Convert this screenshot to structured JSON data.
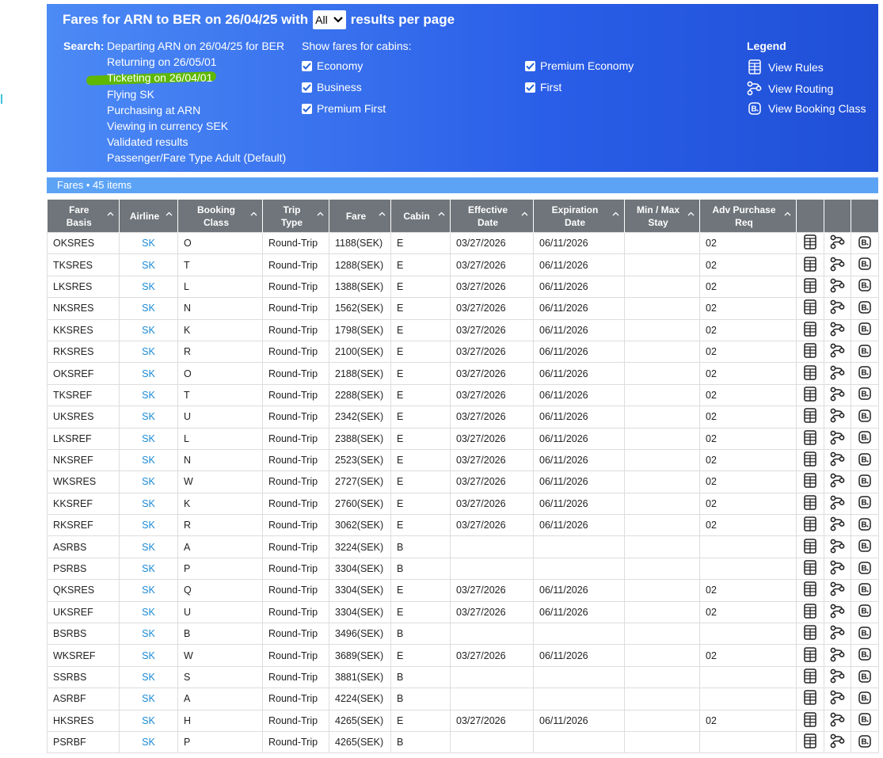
{
  "header": {
    "title_prefix": "Fares for ARN to BER on 26/04/25 with",
    "per_page": "All",
    "title_suffix": "results per page",
    "search_label": "Search:",
    "search_lines": [
      "Departing ARN on 26/04/25 for BER",
      "Returning on 26/05/01",
      "Ticketing on 26/04/01",
      "Flying SK",
      "Purchasing at ARN",
      "Viewing in currency SEK",
      "Validated results",
      "Passenger/Fare Type Adult (Default)"
    ],
    "cabins_label": "Show fares for cabins:",
    "cabins": [
      "Economy",
      "Business",
      "Premium First",
      "Premium Economy",
      "First"
    ],
    "legend_title": "Legend",
    "legend_items": [
      "View Rules",
      "View Routing",
      "View Booking Class"
    ]
  },
  "fares_bar": "Fares • 45 items",
  "table": {
    "columns": [
      [
        "Fare",
        "Basis"
      ],
      [
        "Airline"
      ],
      [
        "Booking",
        "Class"
      ],
      [
        "Trip",
        "Type"
      ],
      [
        "Fare"
      ],
      [
        "Cabin"
      ],
      [
        "Effective",
        "Date"
      ],
      [
        "Expiration",
        "Date"
      ],
      [
        "Min / Max",
        "Stay"
      ],
      [
        "Adv Purchase",
        "Req"
      ]
    ],
    "rows": [
      [
        "OKSRES",
        "SK",
        "O",
        "Round-Trip",
        "1188(SEK)",
        "E",
        "03/27/2026",
        "06/11/2026",
        null,
        "02"
      ],
      [
        "TKSRES",
        "SK",
        "T",
        "Round-Trip",
        "1288(SEK)",
        "E",
        "03/27/2026",
        "06/11/2026",
        null,
        "02"
      ],
      [
        "LKSRES",
        "SK",
        "L",
        "Round-Trip",
        "1388(SEK)",
        "E",
        "03/27/2026",
        "06/11/2026",
        null,
        "02"
      ],
      [
        "NKSRES",
        "SK",
        "N",
        "Round-Trip",
        "1562(SEK)",
        "E",
        "03/27/2026",
        "06/11/2026",
        null,
        "02"
      ],
      [
        "KKSRES",
        "SK",
        "K",
        "Round-Trip",
        "1798(SEK)",
        "E",
        "03/27/2026",
        "06/11/2026",
        null,
        "02"
      ],
      [
        "RKSRES",
        "SK",
        "R",
        "Round-Trip",
        "2100(SEK)",
        "E",
        "03/27/2026",
        "06/11/2026",
        null,
        "02"
      ],
      [
        "OKSREF",
        "SK",
        "O",
        "Round-Trip",
        "2188(SEK)",
        "E",
        "03/27/2026",
        "06/11/2026",
        null,
        "02"
      ],
      [
        "TKSREF",
        "SK",
        "T",
        "Round-Trip",
        "2288(SEK)",
        "E",
        "03/27/2026",
        "06/11/2026",
        null,
        "02"
      ],
      [
        "UKSRES",
        "SK",
        "U",
        "Round-Trip",
        "2342(SEK)",
        "E",
        "03/27/2026",
        "06/11/2026",
        null,
        "02"
      ],
      [
        "LKSREF",
        "SK",
        "L",
        "Round-Trip",
        "2388(SEK)",
        "E",
        "03/27/2026",
        "06/11/2026",
        null,
        "02"
      ],
      [
        "NKSREF",
        "SK",
        "N",
        "Round-Trip",
        "2523(SEK)",
        "E",
        "03/27/2026",
        "06/11/2026",
        null,
        "02"
      ],
      [
        "WKSRES",
        "SK",
        "W",
        "Round-Trip",
        "2727(SEK)",
        "E",
        "03/27/2026",
        "06/11/2026",
        null,
        "02"
      ],
      [
        "KKSREF",
        "SK",
        "K",
        "Round-Trip",
        "2760(SEK)",
        "E",
        "03/27/2026",
        "06/11/2026",
        null,
        "02"
      ],
      [
        "RKSREF",
        "SK",
        "R",
        "Round-Trip",
        "3062(SEK)",
        "E",
        "03/27/2026",
        "06/11/2026",
        null,
        "02"
      ],
      [
        "ASRBS",
        "SK",
        "A",
        "Round-Trip",
        "3224(SEK)",
        "B",
        null,
        null,
        null,
        null
      ],
      [
        "PSRBS",
        "SK",
        "P",
        "Round-Trip",
        "3304(SEK)",
        "B",
        null,
        null,
        null,
        null
      ],
      [
        "QKSRES",
        "SK",
        "Q",
        "Round-Trip",
        "3304(SEK)",
        "E",
        "03/27/2026",
        "06/11/2026",
        null,
        "02"
      ],
      [
        "UKSREF",
        "SK",
        "U",
        "Round-Trip",
        "3304(SEK)",
        "E",
        "03/27/2026",
        "06/11/2026",
        null,
        "02"
      ],
      [
        "BSRBS",
        "SK",
        "B",
        "Round-Trip",
        "3496(SEK)",
        "B",
        null,
        null,
        null,
        null
      ],
      [
        "WKSREF",
        "SK",
        "W",
        "Round-Trip",
        "3689(SEK)",
        "E",
        "03/27/2026",
        "06/11/2026",
        null,
        "02"
      ],
      [
        "SSRBS",
        "SK",
        "S",
        "Round-Trip",
        "3881(SEK)",
        "B",
        null,
        null,
        null,
        null
      ],
      [
        "ASRBF",
        "SK",
        "A",
        "Round-Trip",
        "4224(SEK)",
        "B",
        null,
        null,
        null,
        null
      ],
      [
        "HKSRES",
        "SK",
        "H",
        "Round-Trip",
        "4265(SEK)",
        "E",
        "03/27/2026",
        "06/11/2026",
        null,
        "02"
      ],
      [
        "PSRBF",
        "SK",
        "P",
        "Round-Trip",
        "4265(SEK)",
        "B",
        null,
        null,
        null,
        null
      ]
    ]
  }
}
